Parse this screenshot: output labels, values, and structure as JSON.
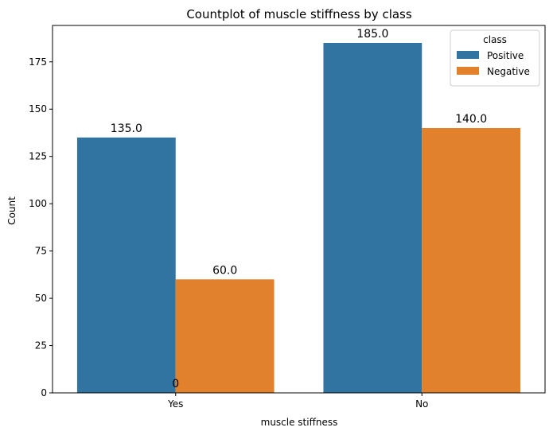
{
  "chart_data": {
    "type": "bar",
    "title": "Countplot of muscle stiffness by class",
    "xlabel": "muscle stiffness",
    "ylabel": "Count",
    "categories": [
      "Yes",
      "No"
    ],
    "series": [
      {
        "name": "Positive",
        "color": "#3274a1",
        "values": [
          135,
          185
        ]
      },
      {
        "name": "Negative",
        "color": "#e1812c",
        "values": [
          60,
          140
        ]
      }
    ],
    "bar_labels": [
      [
        "135.0",
        "185.0"
      ],
      [
        "60.0",
        "140.0"
      ]
    ],
    "extra_annotation": {
      "text": "0",
      "category": "Yes",
      "value": 0
    },
    "yticks": [
      0,
      25,
      50,
      75,
      100,
      125,
      150,
      175
    ],
    "ylim": [
      0,
      194.25
    ],
    "legend": {
      "title": "class",
      "placement": "top-right"
    },
    "grid": false
  }
}
